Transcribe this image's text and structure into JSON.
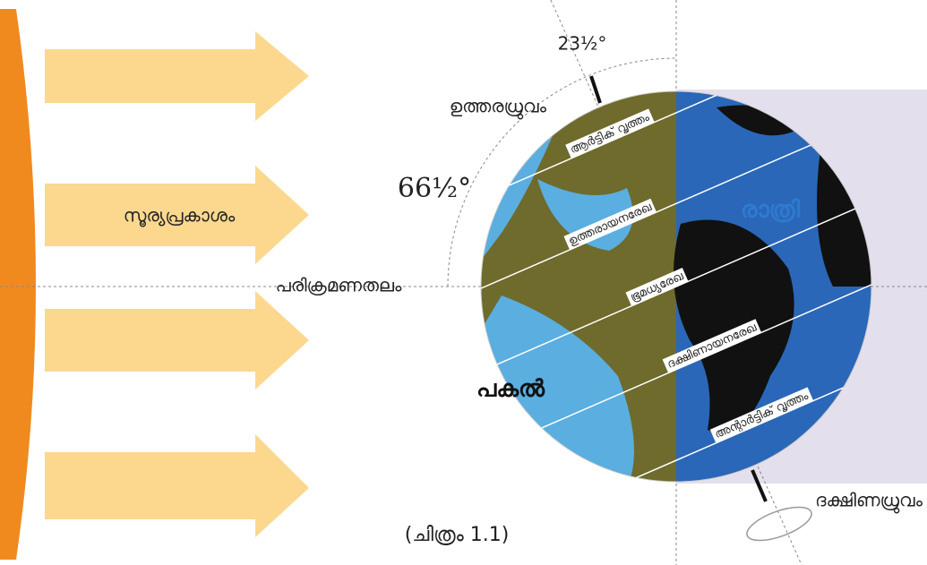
{
  "figure": {
    "angles": {
      "axis_tilt": "23½°",
      "plane_angle": "66½°"
    },
    "labels": {
      "sunlight": "സൂര്യപ്രകാശം",
      "orbital_plane": "പരിക്രമണതലം",
      "north_pole": "ഉത്തരധ്രുവം",
      "south_pole": "ദക്ഷിണധ്രുവം",
      "night": "രാത്രി",
      "day": "പകൽ"
    },
    "lines": {
      "arctic_circle": "ആർട്ടിക് വൃത്തം",
      "tropic_of_cancer": "ഉത്തരായനരേഖ",
      "equator": "ഭൂമധ്യരേഖ",
      "tropic_of_capricorn": "ദക്ഷിണായനരേഖ",
      "antarctic_circle": "അന്റാർട്ടിക് വൃത്തം"
    },
    "caption": "(ചിത്രം 1.1)"
  }
}
